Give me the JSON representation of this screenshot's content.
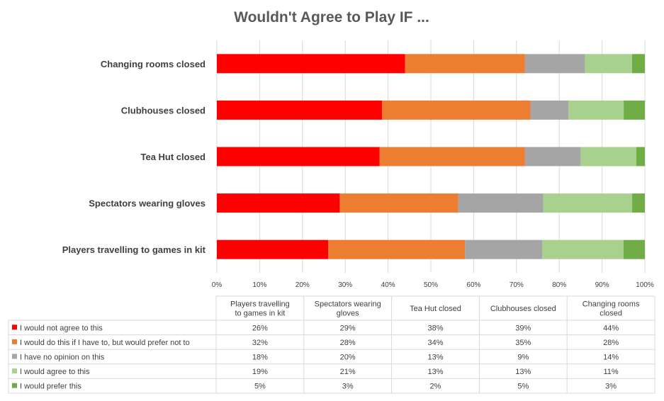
{
  "chart_data": {
    "type": "bar",
    "orientation": "horizontal",
    "stacked": true,
    "percent": true,
    "title": "Wouldn't Agree to Play IF ...",
    "categories": [
      "Players travelling to games in kit",
      "Spectators wearing gloves",
      "Tea Hut closed",
      "Clubhouses closed",
      "Changing rooms closed"
    ],
    "table_headers": [
      "Players travelling to games in kit",
      "Spectators wearing gloves",
      "Tea Hut closed",
      "Clubhouses closed",
      "Changing rooms closed"
    ],
    "series": [
      {
        "name": "I would not agree to this",
        "color": "#FF0000",
        "values": [
          26,
          29,
          38,
          39,
          44
        ],
        "labels": [
          "26%",
          "29%",
          "38%",
          "39%",
          "44%"
        ]
      },
      {
        "name": "I would do this if I have to, but would prefer not to",
        "color": "#ED7D31",
        "values": [
          32,
          28,
          34,
          35,
          28
        ],
        "labels": [
          "32%",
          "28%",
          "34%",
          "35%",
          "28%"
        ]
      },
      {
        "name": "I have no opinion on this",
        "color": "#A5A5A5",
        "values": [
          18,
          20,
          13,
          9,
          14
        ],
        "labels": [
          "18%",
          "20%",
          "13%",
          "9%",
          "14%"
        ]
      },
      {
        "name": "I would agree to this",
        "color": "#A9D18E",
        "values": [
          19,
          21,
          13,
          13,
          11
        ],
        "labels": [
          "19%",
          "21%",
          "13%",
          "13%",
          "11%"
        ]
      },
      {
        "name": "I would prefer this",
        "color": "#70AD47",
        "values": [
          5,
          3,
          2,
          5,
          3
        ],
        "labels": [
          "5%",
          "3%",
          "2%",
          "5%",
          "3%"
        ]
      }
    ],
    "x_ticks": [
      "0%",
      "10%",
      "20%",
      "30%",
      "40%",
      "50%",
      "60%",
      "70%",
      "80%",
      "90%",
      "100%"
    ],
    "xlim": [
      0,
      100
    ],
    "grid": "vertical",
    "legend": "data-table-bottom"
  }
}
